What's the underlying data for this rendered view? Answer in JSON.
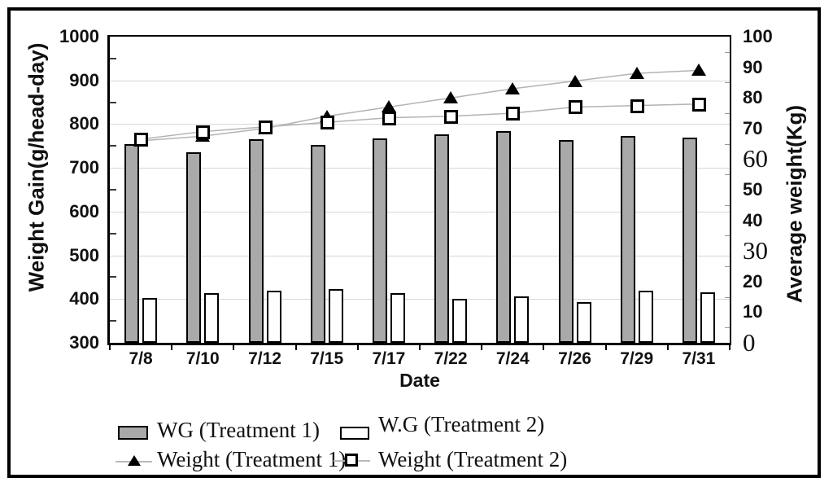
{
  "chart_data": {
    "type": "bar-line-combo",
    "categories": [
      "7/8",
      "7/10",
      "7/12",
      "7/15",
      "7/17",
      "7/22",
      "7/24",
      "7/26",
      "7/29",
      "7/31"
    ],
    "series": [
      {
        "name": "WG (Treatment 1)",
        "type": "bar",
        "axis": "left",
        "style": "gray",
        "values": [
          755,
          735,
          765,
          753,
          767,
          777,
          784,
          764,
          773,
          770
        ]
      },
      {
        "name": "W.G (Treatment 2)",
        "type": "bar",
        "axis": "left",
        "style": "white",
        "values": [
          403,
          413,
          420,
          422,
          414,
          400,
          407,
          394,
          419,
          416
        ]
      },
      {
        "name": "Weight (Treatment 1)",
        "type": "line",
        "axis": "right",
        "marker": "triangle",
        "values": [
          66,
          67.5,
          70,
          74,
          77,
          80,
          83,
          85.5,
          88,
          89
        ]
      },
      {
        "name": "Weight (Treatment 2)",
        "type": "line",
        "axis": "right",
        "marker": "square",
        "values": [
          66.5,
          69,
          70.5,
          72,
          73.5,
          74,
          75,
          77,
          77.5,
          78
        ]
      }
    ],
    "left_axis": {
      "label": "Weight Gain(g/head-day)",
      "min": 300,
      "max": 1000,
      "step": 100,
      "ticks": [
        "300",
        "400",
        "500",
        "600",
        "700",
        "800",
        "900",
        "1000"
      ]
    },
    "right_axis": {
      "label": "Average weight(Kg)",
      "min": 0,
      "max": 100,
      "step": 10,
      "ticks": [
        "0",
        "10",
        "20",
        "30",
        "40",
        "50",
        "60",
        "70",
        "80",
        "90",
        "100"
      ],
      "serif_tick_labels": [
        "60",
        "30",
        "0"
      ]
    },
    "x_axis": {
      "label": "Date"
    },
    "grid": true,
    "legend_position": "bottom"
  },
  "legend": {
    "items": [
      {
        "label": "WG (Treatment 1)",
        "swatch": "bar-gray"
      },
      {
        "label": "W.G (Treatment 2)",
        "swatch": "bar-white"
      },
      {
        "label": "Weight (Treatment 1)",
        "swatch": "line-triangle"
      },
      {
        "label": "Weight (Treatment 2)",
        "swatch": "line-square"
      }
    ]
  },
  "colors": {
    "bar_gray": "#a9a9a9",
    "bar_white": "#ffffff",
    "line_gray": "#b3b3b3",
    "grid": "#d7d7d7",
    "text": "#111111"
  }
}
